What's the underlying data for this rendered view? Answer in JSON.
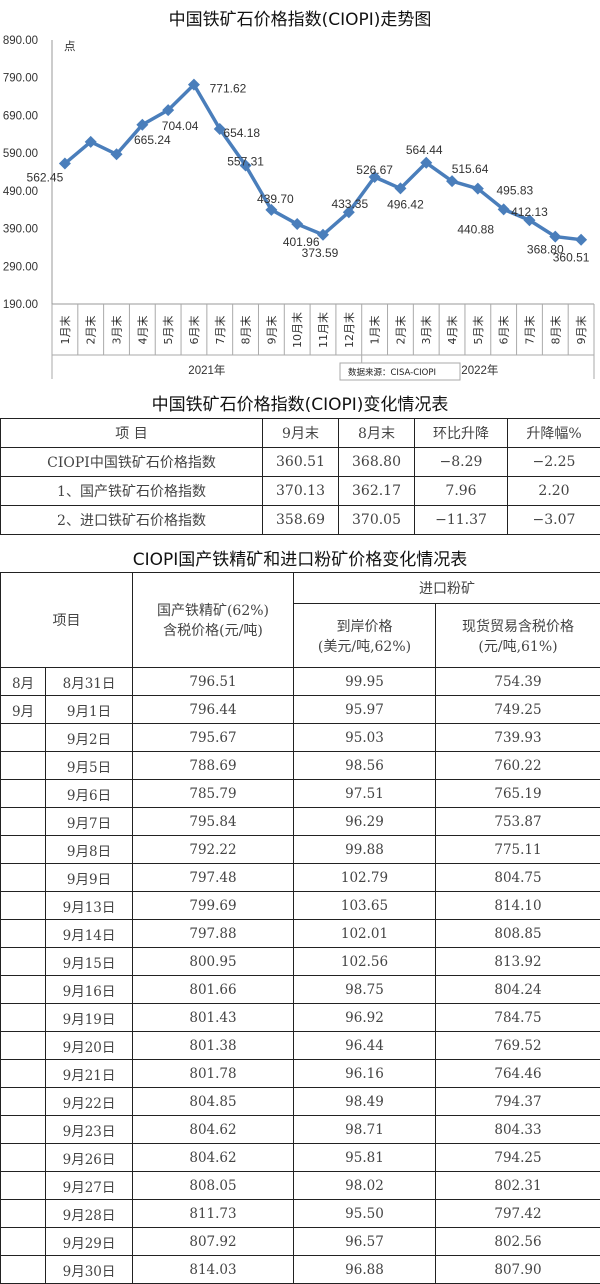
{
  "chart_title": "中国铁矿石价格指数(CIOPI)走势图",
  "chart_data": {
    "type": "line",
    "title": "中国铁矿石价格指数(CIOPI)走势图",
    "ylabel": "点",
    "ylim": [
      190,
      890
    ],
    "yticks": [
      "890.00",
      "790.00",
      "690.00",
      "590.00",
      "490.00",
      "390.00",
      "290.00",
      "190.00"
    ],
    "categories": [
      "1月末",
      "2月末",
      "3月末",
      "4月末",
      "5月末",
      "6月末",
      "7月末",
      "8月末",
      "9月末",
      "10月末",
      "11月末",
      "12月末",
      "1月末",
      "2月末",
      "3月末",
      "4月末",
      "5月末",
      "6月末",
      "7月末",
      "8月末",
      "9月末"
    ],
    "year_groups": [
      "2021年",
      "2022年"
    ],
    "values": [
      562.45,
      620,
      587,
      665.24,
      704.04,
      771.62,
      654.18,
      557.31,
      439.7,
      401.96,
      373.59,
      433.35,
      526.67,
      496.42,
      564.44,
      515.64,
      495.83,
      440.88,
      412.13,
      368.8,
      360.51
    ],
    "data_labels": [
      "562.45",
      null,
      null,
      "665.24",
      "704.04",
      "771.62",
      "654.18",
      "557.31",
      "439.70",
      "401.96",
      "373.59",
      "433.35",
      "526.67",
      "496.42",
      "564.44",
      "515.64",
      "495.83",
      "440.88",
      "412.13",
      "368.80",
      "360.51"
    ],
    "source_note": "数据来源：CISA-CIOPI",
    "color": "#4a7ebb",
    "grid": false
  },
  "table1": {
    "title": "中国铁矿石价格指数(CIOPI)变化情况表",
    "headers": [
      "项  目",
      "9月末",
      "8月末",
      "环比升降",
      "升降幅%"
    ],
    "rows": [
      [
        "CIOPI中国铁矿石价格指数",
        "360.51",
        "368.80",
        "−8.29",
        "−2.25"
      ],
      [
        "1、国产铁矿石价格指数",
        "370.13",
        "362.17",
        "7.96",
        "2.20"
      ],
      [
        "2、进口铁矿石价格指数",
        "358.69",
        "370.05",
        "−11.37",
        "−3.07"
      ]
    ]
  },
  "table2": {
    "title": "CIOPI国产铁精矿和进口粉矿价格变化情况表",
    "header_item": "项目",
    "header_domestic_1": "国产铁精矿(62%)",
    "header_domestic_2": "含税价格(元/吨)",
    "header_import": "进口粉矿",
    "header_cif_1": "到岸价格",
    "header_cif_2": "(美元/吨,62%)",
    "header_spot_1": "现货贸易含税价格",
    "header_spot_2": "(元/吨,61%)",
    "rows": [
      [
        "8月",
        "8月31日",
        "796.51",
        "99.95",
        "754.39"
      ],
      [
        "9月",
        "9月1日",
        "796.44",
        "95.97",
        "749.25"
      ],
      [
        "",
        "9月2日",
        "795.67",
        "95.03",
        "739.93"
      ],
      [
        "",
        "9月5日",
        "788.69",
        "98.56",
        "760.22"
      ],
      [
        "",
        "9月6日",
        "785.79",
        "97.51",
        "765.19"
      ],
      [
        "",
        "9月7日",
        "795.84",
        "96.29",
        "753.87"
      ],
      [
        "",
        "9月8日",
        "792.22",
        "99.88",
        "775.11"
      ],
      [
        "",
        "9月9日",
        "797.48",
        "102.79",
        "804.75"
      ],
      [
        "",
        "9月13日",
        "799.69",
        "103.65",
        "814.10"
      ],
      [
        "",
        "9月14日",
        "797.88",
        "102.01",
        "808.85"
      ],
      [
        "",
        "9月15日",
        "800.95",
        "102.56",
        "813.92"
      ],
      [
        "",
        "9月16日",
        "801.66",
        "98.75",
        "804.24"
      ],
      [
        "",
        "9月19日",
        "801.43",
        "96.92",
        "784.75"
      ],
      [
        "",
        "9月20日",
        "801.38",
        "96.44",
        "769.52"
      ],
      [
        "",
        "9月21日",
        "801.78",
        "96.16",
        "764.46"
      ],
      [
        "",
        "9月22日",
        "804.85",
        "98.49",
        "794.37"
      ],
      [
        "",
        "9月23日",
        "804.62",
        "98.71",
        "804.33"
      ],
      [
        "",
        "9月26日",
        "804.62",
        "95.81",
        "794.25"
      ],
      [
        "",
        "9月27日",
        "808.05",
        "98.02",
        "802.31"
      ],
      [
        "",
        "9月28日",
        "811.73",
        "95.50",
        "797.42"
      ],
      [
        "",
        "9月29日",
        "807.92",
        "96.57",
        "802.56"
      ],
      [
        "",
        "9月30日",
        "814.03",
        "96.88",
        "807.90"
      ]
    ]
  }
}
